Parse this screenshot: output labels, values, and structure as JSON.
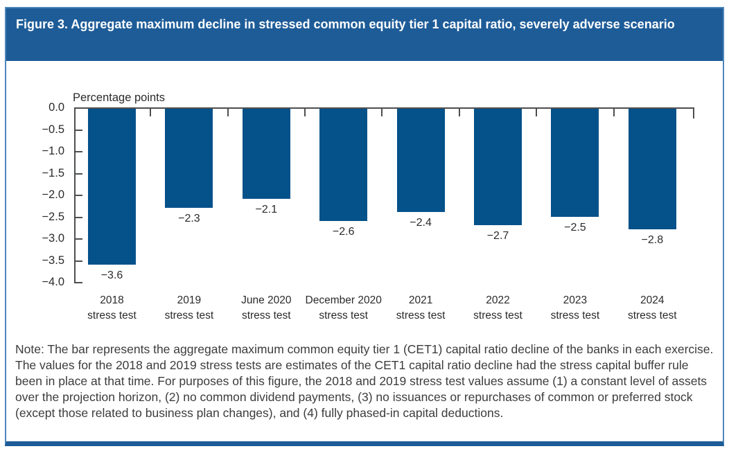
{
  "header": {
    "title": "Figure 3. Aggregate maximum decline in stressed common equity tier 1 capital ratio, severely adverse scenario"
  },
  "chart_data": {
    "type": "bar",
    "title": "Figure 3. Aggregate maximum decline in stressed common equity tier 1 capital ratio, severely adverse scenario",
    "units_label": "Percentage points",
    "xlabel": "",
    "ylabel": "Percentage points",
    "categories": [
      {
        "line1": "2018",
        "line2": "stress test"
      },
      {
        "line1": "2019",
        "line2": "stress test"
      },
      {
        "line1": "June 2020",
        "line2": "stress test"
      },
      {
        "line1": "December 2020",
        "line2": "stress test"
      },
      {
        "line1": "2021",
        "line2": "stress test"
      },
      {
        "line1": "2022",
        "line2": "stress test"
      },
      {
        "line1": "2023",
        "line2": "stress test"
      },
      {
        "line1": "2024",
        "line2": "stress test"
      }
    ],
    "values": [
      -3.6,
      -2.3,
      -2.1,
      -2.6,
      -2.4,
      -2.7,
      -2.5,
      -2.8
    ],
    "value_labels": [
      "−3.6",
      "−2.3",
      "−2.1",
      "−2.6",
      "−2.4",
      "−2.7",
      "−2.5",
      "−2.8"
    ],
    "ylim": [
      0,
      -4.0
    ],
    "ytick_values": [
      0,
      -0.5,
      -1.0,
      -1.5,
      -2.0,
      -2.5,
      -3.0,
      -3.5,
      -4.0
    ],
    "ytick_labels": [
      "0.0",
      "−0.5",
      "−1.0",
      "−1.5",
      "−2.0",
      "−2.5",
      "−3.0",
      "−3.5",
      "−4.0"
    ],
    "grid": false,
    "legend": null,
    "bar_color": "#05518a"
  },
  "note": {
    "text": "Note: The bar represents the aggregate maximum common equity tier 1 (CET1) capital ratio decline of the banks in each exercise. The values for the 2018 and 2019 stress tests are estimates of the CET1 capital ratio decline had the stress capital buffer rule been in place at that time. For purposes of this figure, the 2018 and 2019 stress test values assume (1) a constant level of assets over the projection horizon, (2) no common dividend payments, (3) no issuances or repurchases of common or preferred stock (except those related to business plan changes), and (4) fully phased-in capital deductions."
  },
  "colors": {
    "header_bg": "#1e5c98",
    "border": "#4c86ba",
    "bottom_bar": "#1e5c98",
    "bar": "#05518a",
    "axis": "#4d4e50"
  }
}
